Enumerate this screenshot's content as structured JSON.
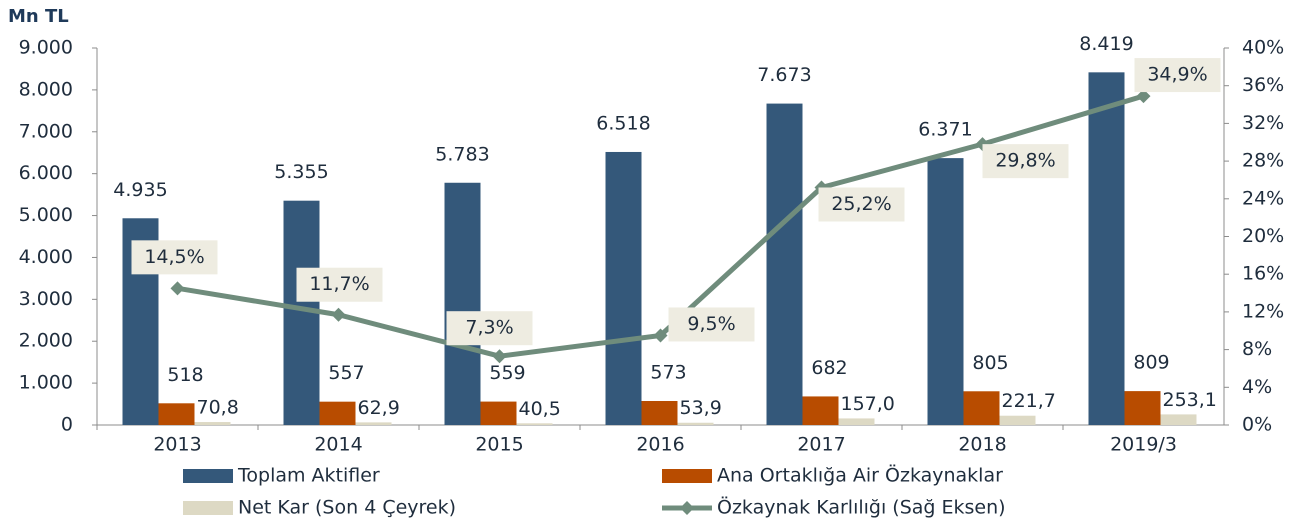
{
  "chart_data": {
    "type": "bar_line",
    "ylabel": "Mn TL",
    "categories": [
      "2013",
      "2014",
      "2015",
      "2016",
      "2017",
      "2018",
      "2019/3"
    ],
    "series": [
      {
        "name": "Toplam Aktifler",
        "color": "#34587a",
        "values": [
          4935,
          5355,
          5783,
          6518,
          7673,
          6371,
          8419
        ],
        "value_labels": [
          "4.935",
          "5.355",
          "5.783",
          "6.518",
          "7.673",
          "6.371",
          "8.419"
        ]
      },
      {
        "name": "Ana Ortaklığa Air Özkaynaklar",
        "color": "#b84c00",
        "values": [
          518,
          557,
          559,
          573,
          682,
          805,
          809
        ]
      },
      {
        "name": "Net Kar (Son 4 Çeyrek)",
        "color": "#ddd9c4",
        "values": [
          70.8,
          62.9,
          40.5,
          53.9,
          157.0,
          221.7,
          253.1
        ],
        "value_labels": [
          "70,8",
          "62,9",
          "40,5",
          "53,9",
          "157,0",
          "221,7",
          "253,1"
        ]
      },
      {
        "name": "Özkaynak Karlılığı (Sağ Eksen)",
        "color": "#6f8c7c",
        "axis": "y2",
        "type": "line",
        "values": [
          14.5,
          11.7,
          7.3,
          9.5,
          25.2,
          29.8,
          34.9
        ],
        "value_labels": [
          "14,5%",
          "11,7%",
          "7,3%",
          "9,5%",
          "25,2%",
          "29,8%",
          "34,9%"
        ]
      }
    ],
    "ylim": [
      0,
      9000
    ],
    "yticks": [
      0,
      {
        "value": 1000,
        "label": "1.000"
      },
      {
        "value": 2000,
        "label": "2.000"
      },
      {
        "value": 3000,
        "label": "3.000"
      },
      {
        "value": 4000,
        "label": "4.000"
      },
      {
        "value": 5000,
        "label": "5.000"
      },
      {
        "value": 6000,
        "label": "6.000"
      },
      {
        "value": 7000,
        "label": "7.000"
      },
      {
        "value": 8000,
        "label": "8.000"
      },
      {
        "value": 9000,
        "label": "9.000"
      }
    ],
    "y2lim": [
      0,
      40
    ],
    "y2ticks": [
      {
        "value": 0,
        "label": "0%"
      },
      {
        "value": 4,
        "label": "4%"
      },
      {
        "value": 8,
        "label": "8%"
      },
      {
        "value": 12,
        "label": "12%"
      },
      {
        "value": 16,
        "label": "16%"
      },
      {
        "value": 20,
        "label": "20%"
      },
      {
        "value": 24,
        "label": "24%"
      },
      {
        "value": 28,
        "label": "28%"
      },
      {
        "value": 32,
        "label": "32%"
      },
      {
        "value": 36,
        "label": "36%"
      },
      {
        "value": 40,
        "label": "40%"
      }
    ],
    "grid": false
  }
}
